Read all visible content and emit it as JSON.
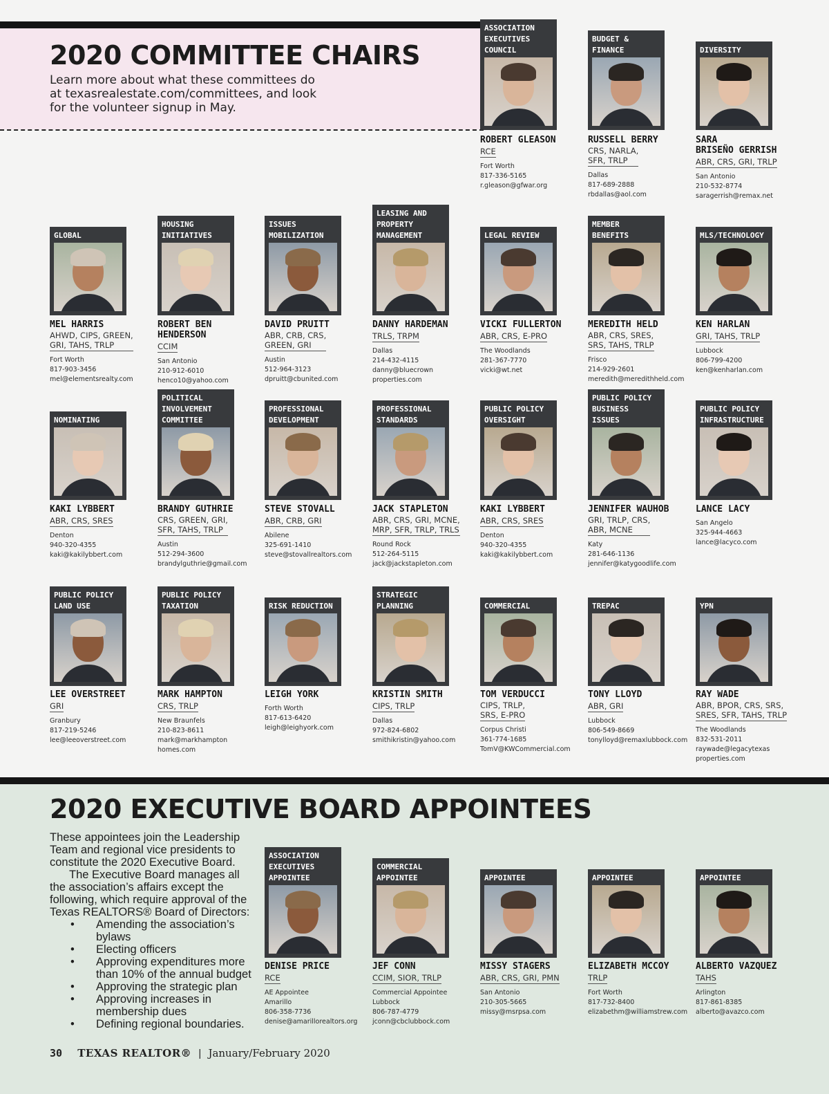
{
  "header": {
    "title": "2020 COMMITTEE CHAIRS",
    "intro_line1": "Learn more about what these committees do",
    "intro_line2": "at texasrealestate.com/committees, and look",
    "intro_line3": "for the volunteer signup in May."
  },
  "committees": [
    {
      "committee": "ASSOCIATION\nEXECUTIVES\nCOUNCIL",
      "name": "ROBERT GLEASON",
      "creds": "RCE",
      "contact": "Fort Worth\n817-336-5165\nr.gleason@gfwar.org"
    },
    {
      "committee": "BUDGET &\nFINANCE",
      "name": "RUSSELL BERRY",
      "creds": "CRS, NARLA,\nSFR, TRLP",
      "contact": "Dallas\n817-689-2888\nrbdallas@aol.com"
    },
    {
      "committee": "DIVERSITY",
      "name": "SARA\nBRISEÑO GERRISH",
      "creds": "ABR, CRS, GRI, TRLP",
      "contact": "San Antonio\n210-532-8774\nsaragerrish@remax.net"
    },
    {
      "committee": "GLOBAL",
      "name": "MEL HARRIS",
      "creds": "AHWD, CIPS, GREEN,\nGRI, TAHS, TRLP",
      "contact": "Fort Worth\n817-903-3456\nmel@elementsrealty.com"
    },
    {
      "committee": "HOUSING\nINITIATIVES",
      "name": "ROBERT BEN\nHENDERSON",
      "creds": "CCIM",
      "contact": "San Antonio\n210-912-6010\nhenco10@yahoo.com"
    },
    {
      "committee": "ISSUES\nMOBILIZATION",
      "name": "DAVID PRUITT",
      "creds": "ABR, CRB, CRS,\nGREEN, GRI",
      "contact": "Austin\n512-964-3123\ndpruitt@cbunited.com"
    },
    {
      "committee": "LEASING AND\nPROPERTY\nMANAGEMENT",
      "name": "DANNY HARDEMAN",
      "creds": "TRLS, TRPM",
      "contact": "Dallas\n214-432-4115\ndanny@bluecrown\nproperties.com"
    },
    {
      "committee": "LEGAL REVIEW",
      "name": "VICKI FULLERTON",
      "creds": "ABR, CRS, E-PRO",
      "contact": "The Woodlands\n281-367-7770\nvicki@wt.net"
    },
    {
      "committee": "MEMBER\nBENEFITS",
      "name": "MEREDITH HELD",
      "creds": "ABR, CRS, SRES,\nSRS, TAHS, TRLP",
      "contact": "Frisco\n214-929-2601\nmeredith@meredithheld.com"
    },
    {
      "committee": "MLS/TECHNOLOGY",
      "name": "KEN HARLAN",
      "creds": "GRI, TAHS, TRLP",
      "contact": "Lubbock\n806-799-4200\nken@kenharlan.com"
    },
    {
      "committee": "NOMINATING",
      "name": "KAKI LYBBERT",
      "creds": "ABR, CRS, SRES",
      "contact": "Denton\n940-320-4355\nkaki@kakilybbert.com"
    },
    {
      "committee": "POLITICAL\nINVOLVEMENT\nCOMMITTEE",
      "name": "BRANDY GUTHRIE",
      "creds": "CRS, GREEN, GRI,\nSFR, TAHS, TRLP",
      "contact": "Austin\n512-294-3600\nbrandylguthrie@gmail.com"
    },
    {
      "committee": "PROFESSIONAL\nDEVELOPMENT",
      "name": "STEVE STOVALL",
      "creds": "ABR, CRB, GRI",
      "contact": "Abilene\n325-691-1410\nsteve@stovallrealtors.com"
    },
    {
      "committee": "PROFESSIONAL\nSTANDARDS",
      "name": "JACK STAPLETON",
      "creds": "ABR, CRS, GRI, MCNE,\nMRP, SFR, TRLP, TRLS",
      "contact": "Round Rock\n512-264-5115\njack@jackstapleton.com"
    },
    {
      "committee": "PUBLIC POLICY\nOVERSIGHT",
      "name": "KAKI LYBBERT",
      "creds": "ABR, CRS, SRES",
      "contact": "Denton\n940-320-4355\nkaki@kakilybbert.com"
    },
    {
      "committee": "PUBLIC POLICY\nBUSINESS ISSUES",
      "name": "JENNIFER WAUHOB",
      "creds": "GRI, TRLP, CRS,\nABR, MCNE",
      "contact": "Katy\n281-646-1136\njennifer@katygoodlife.com"
    },
    {
      "committee": "PUBLIC POLICY\nINFRASTRUCTURE",
      "name": "LANCE LACY",
      "creds": "",
      "contact": "San Angelo\n325-944-4663\nlance@lacyco.com"
    },
    {
      "committee": "PUBLIC POLICY\nLAND USE",
      "name": "LEE OVERSTREET",
      "creds": "GRI",
      "contact": "Granbury\n817-219-5246\nlee@leeoverstreet.com"
    },
    {
      "committee": "PUBLIC POLICY\nTAXATION",
      "name": "MARK HAMPTON",
      "creds": "CRS, TRLP",
      "contact": "New Braunfels\n210-823-8611\nmark@markhampton\nhomes.com"
    },
    {
      "committee": "RISK REDUCTION",
      "name": "LEIGH YORK",
      "creds": "",
      "contact": "Forth Worth\n817-613-6420\nleigh@leighyork.com"
    },
    {
      "committee": "STRATEGIC\nPLANNING",
      "name": "KRISTIN SMITH",
      "creds": "CIPS, TRLP",
      "contact": "Dallas\n972-824-6802\nsmithikristin@yahoo.com"
    },
    {
      "committee": "COMMERCIAL",
      "name": "TOM VERDUCCI",
      "creds": "CIPS, TRLP,\nSRS, E-PRO",
      "contact": "Corpus Christi\n361-774-1685\nTomV@KWCommercial.com"
    },
    {
      "committee": "TREPAC",
      "name": "TONY LLOYD",
      "creds": "ABR, GRI",
      "contact": "Lubbock\n806-549-8669\ntonylloyd@remaxlubbock.com"
    },
    {
      "committee": "YPN",
      "name": "RAY WADE",
      "creds": "ABR, BPOR, CRS, SRS,\nSRES, SFR, TAHS, TRLP",
      "contact": "The Woodlands\n832-531-2011\nraywade@legacytexas\nproperties.com"
    }
  ],
  "executive": {
    "title": "2020 EXECUTIVE BOARD APPOINTEES",
    "para1": "These appointees join the Leadership Team and regional vice presidents to constitute the 2020 Executive Board.",
    "para2": "The Executive Board manages all the association’s affairs except the following, which require approval of the Texas REALTORS® Board of Directors:",
    "bullets": [
      "Amending the association’s bylaws",
      "Electing officers",
      "Approving expenditures more than 10% of the annual budget",
      "Approving the strategic plan",
      "Approving increases in membership dues",
      "Defining regional boundaries."
    ],
    "appointees": [
      {
        "committee": "ASSOCIATION\nEXECUTIVES\nAPPOINTEE",
        "name": "DENISE PRICE",
        "creds": "RCE",
        "contact": "AE Appointee\nAmarillo\n806-358-7736\ndenise@amarillorealtors.org"
      },
      {
        "committee": "COMMERCIAL\nAPPOINTEE",
        "name": "JEF CONN",
        "creds": "CCIM, SIOR, TRLP",
        "contact": "Commercial Appointee\nLubbock\n806-787-4779\njconn@cbclubbock.com"
      },
      {
        "committee": "APPOINTEE",
        "name": "MISSY STAGERS",
        "creds": "ABR, CRS, GRI, PMN",
        "contact": "San Antonio\n210-305-5665\nmissy@msrpsa.com"
      },
      {
        "committee": "APPOINTEE",
        "name": "ELIZABETH MCCOY",
        "creds": "TRLP",
        "contact": "Fort Worth\n817-732-8400\nelizabethm@williamstrew.com"
      },
      {
        "committee": "APPOINTEE",
        "name": "ALBERTO VAZQUEZ",
        "creds": "TAHS",
        "contact": "Arlington\n817-861-8385\nalberto@avazco.com"
      }
    ]
  },
  "footer": {
    "page_number": "30",
    "magazine": "TEXAS REALTOR®",
    "separator": "|",
    "issue": "January/February 2020"
  }
}
